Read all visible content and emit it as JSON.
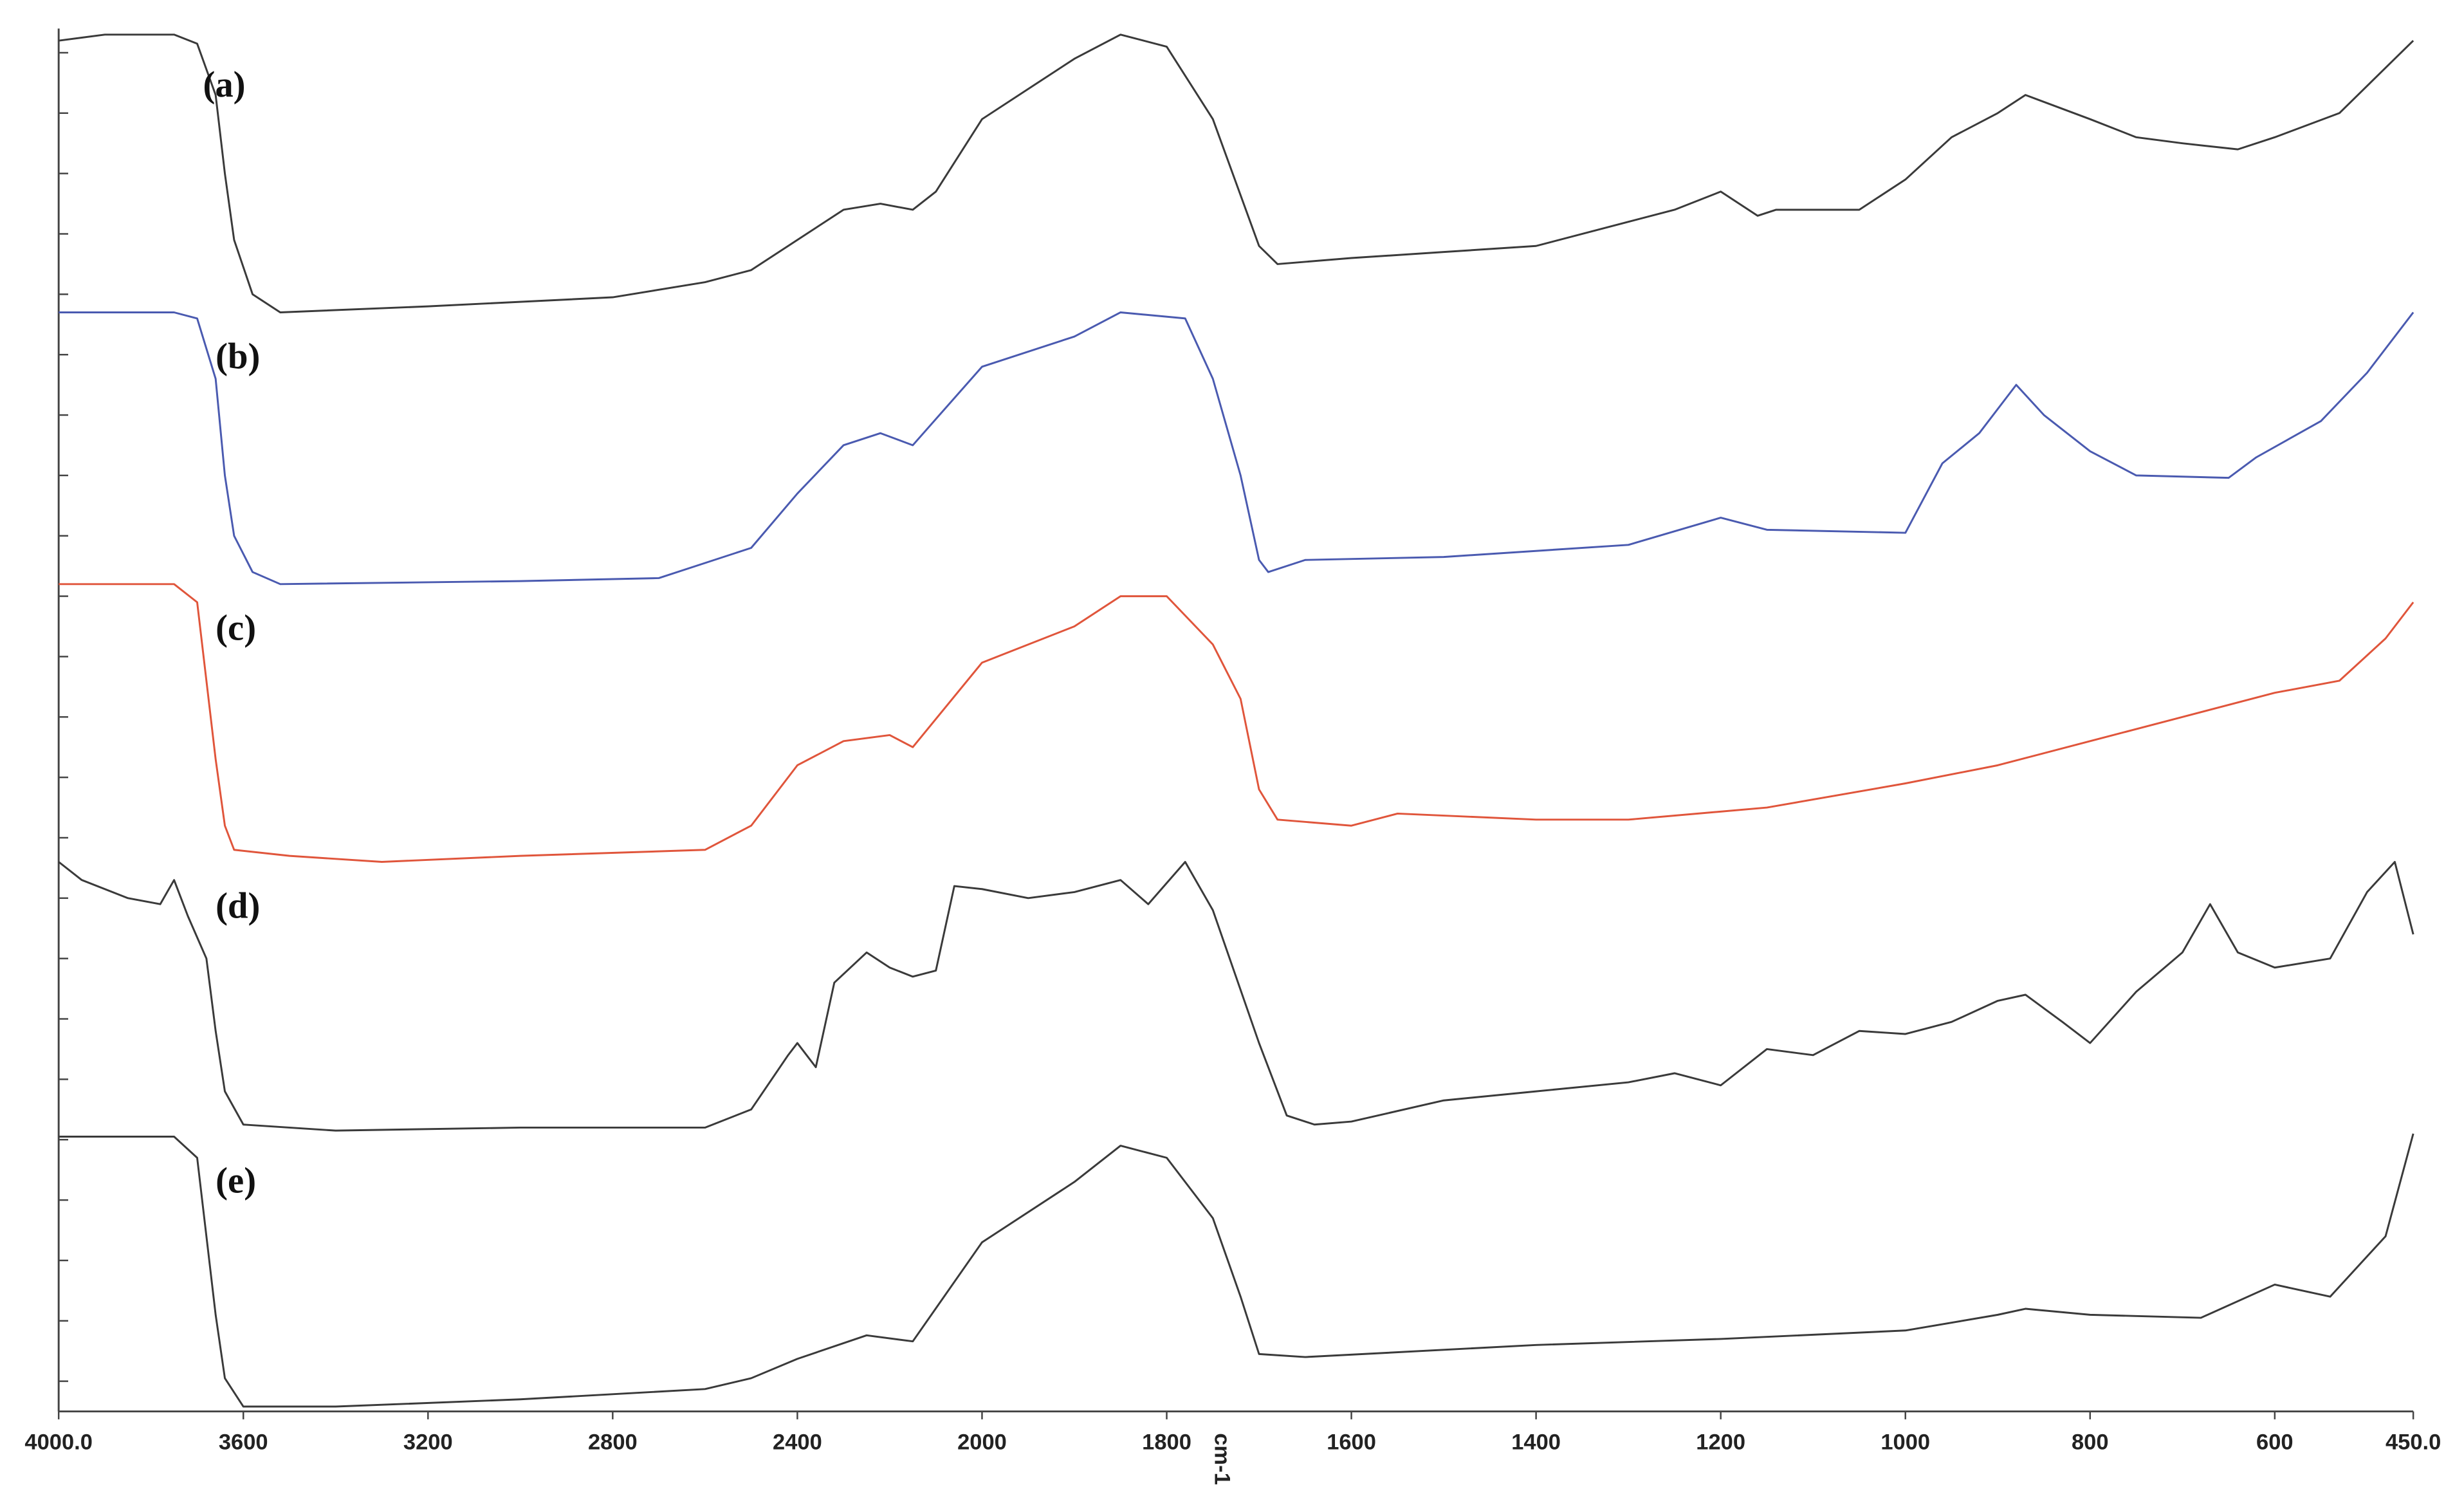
{
  "chart_data": {
    "type": "line",
    "x_label": "cm-1",
    "xlim": [
      4000,
      450
    ],
    "xticks": [
      {
        "value": 4000,
        "label": "4000.0"
      },
      3600,
      3200,
      2800,
      2400,
      2000,
      1800,
      1600,
      1400,
      1200,
      1000,
      800,
      600,
      {
        "value": 450,
        "label": "450.0"
      }
    ],
    "ylim": [
      -0.5,
      22.4
    ],
    "yticks": [
      0,
      1,
      2,
      3,
      4,
      5,
      6,
      7,
      8,
      9,
      10,
      11,
      12,
      13,
      14,
      15,
      16,
      17,
      18,
      19,
      20,
      21,
      22
    ],
    "show_ytick_labels": false,
    "series": [
      {
        "name": "(a)",
        "color": "#3a3a3a",
        "x": [
          4000,
          3900,
          3750,
          3700,
          3660,
          3640,
          3620,
          3580,
          3520,
          3200,
          2800,
          2600,
          2500,
          2400,
          2300,
          2220,
          2150,
          2100,
          2000,
          1900,
          1850,
          1800,
          1750,
          1700,
          1680,
          1600,
          1500,
          1400,
          1300,
          1250,
          1200,
          1160,
          1140,
          1050,
          1000,
          950,
          900,
          870,
          800,
          750,
          700,
          640,
          600,
          530,
          470,
          450
        ],
        "values": [
          22.2,
          22.3,
          22.3,
          22.15,
          21.3,
          20.0,
          18.9,
          18.0,
          17.7,
          17.8,
          17.95,
          18.2,
          18.4,
          18.9,
          19.4,
          19.5,
          19.4,
          19.7,
          20.9,
          21.9,
          22.3,
          22.1,
          20.9,
          18.8,
          18.5,
          18.6,
          18.7,
          18.8,
          19.2,
          19.4,
          19.7,
          19.3,
          19.4,
          19.4,
          19.9,
          20.6,
          21.0,
          21.3,
          20.9,
          20.6,
          20.5,
          20.4,
          20.6,
          21.0,
          21.9,
          22.2
        ]
      },
      {
        "name": "(b)",
        "color": "#4a5ab0",
        "x": [
          4000,
          3750,
          3700,
          3660,
          3640,
          3620,
          3580,
          3520,
          3000,
          2700,
          2500,
          2400,
          2300,
          2220,
          2150,
          2000,
          1900,
          1850,
          1780,
          1750,
          1720,
          1700,
          1690,
          1650,
          1500,
          1300,
          1200,
          1150,
          1000,
          960,
          920,
          880,
          850,
          800,
          750,
          650,
          620,
          550,
          500,
          450
        ],
        "values": [
          17.7,
          17.7,
          17.6,
          16.6,
          15.0,
          14.0,
          13.4,
          13.2,
          13.25,
          13.3,
          13.8,
          14.7,
          15.5,
          15.7,
          15.5,
          16.8,
          17.3,
          17.7,
          17.6,
          16.6,
          15.0,
          13.6,
          13.4,
          13.6,
          13.65,
          13.85,
          14.3,
          14.1,
          14.05,
          15.2,
          15.7,
          16.5,
          16.0,
          15.4,
          15.0,
          14.96,
          15.3,
          15.9,
          16.7,
          17.7
        ]
      },
      {
        "name": "(c)",
        "color": "#e0553b",
        "x": [
          4000,
          3750,
          3700,
          3680,
          3660,
          3640,
          3620,
          3500,
          3300,
          3000,
          2600,
          2500,
          2400,
          2300,
          2200,
          2150,
          2000,
          1900,
          1850,
          1800,
          1750,
          1720,
          1700,
          1680,
          1600,
          1550,
          1400,
          1300,
          1150,
          1000,
          900,
          800,
          700,
          600,
          530,
          480,
          450
        ],
        "values": [
          13.2,
          13.2,
          12.9,
          11.6,
          10.3,
          9.2,
          8.8,
          8.7,
          8.6,
          8.7,
          8.8,
          9.2,
          10.2,
          10.6,
          10.7,
          10.5,
          11.9,
          12.5,
          13.0,
          13.0,
          12.2,
          11.3,
          9.8,
          9.3,
          9.2,
          9.4,
          9.3,
          9.3,
          9.5,
          9.9,
          10.2,
          10.6,
          11.0,
          11.4,
          11.6,
          12.3,
          12.9
        ]
      },
      {
        "name": "(d)",
        "color": "#3a3a3a",
        "x": [
          4000,
          3950,
          3850,
          3780,
          3750,
          3720,
          3680,
          3660,
          3640,
          3600,
          3400,
          3000,
          2600,
          2500,
          2420,
          2400,
          2360,
          2320,
          2250,
          2200,
          2150,
          2100,
          2060,
          2000,
          1950,
          1900,
          1850,
          1820,
          1780,
          1750,
          1700,
          1670,
          1640,
          1600,
          1500,
          1400,
          1300,
          1250,
          1200,
          1150,
          1100,
          1050,
          1000,
          950,
          900,
          870,
          830,
          800,
          750,
          700,
          670,
          640,
          600,
          540,
          500,
          470,
          450
        ],
        "values": [
          8.6,
          8.3,
          8.0,
          7.9,
          8.3,
          7.7,
          7.0,
          5.8,
          4.8,
          4.25,
          4.15,
          4.2,
          4.2,
          4.5,
          5.4,
          5.6,
          5.2,
          6.6,
          7.1,
          6.85,
          6.7,
          6.8,
          8.2,
          8.15,
          8.0,
          8.1,
          8.3,
          7.9,
          8.6,
          7.8,
          5.6,
          4.4,
          4.25,
          4.3,
          4.65,
          4.8,
          4.95,
          5.1,
          4.9,
          5.5,
          5.4,
          5.8,
          5.75,
          5.95,
          6.3,
          6.4,
          5.95,
          5.6,
          6.45,
          7.1,
          7.9,
          7.1,
          6.85,
          7.0,
          8.1,
          8.6,
          7.4
        ]
      },
      {
        "name": "(e)",
        "color": "#3a3a3a",
        "x": [
          4000,
          3750,
          3700,
          3680,
          3660,
          3640,
          3600,
          3400,
          3000,
          2600,
          2500,
          2400,
          2250,
          2150,
          2000,
          1900,
          1850,
          1800,
          1750,
          1720,
          1700,
          1650,
          1400,
          1200,
          1000,
          900,
          870,
          800,
          680,
          600,
          540,
          480,
          450
        ],
        "values": [
          4.05,
          4.05,
          3.7,
          2.4,
          1.1,
          0.05,
          -0.42,
          -0.42,
          -0.3,
          -0.13,
          0.05,
          0.37,
          0.76,
          0.66,
          2.3,
          3.3,
          3.9,
          3.7,
          2.7,
          1.4,
          0.45,
          0.4,
          0.6,
          0.7,
          0.84,
          1.1,
          1.2,
          1.1,
          1.05,
          1.6,
          1.4,
          2.4,
          4.1
        ]
      }
    ]
  }
}
